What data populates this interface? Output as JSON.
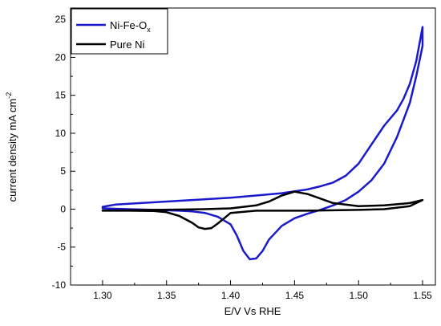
{
  "chart_data": {
    "type": "line",
    "xlabel": "E/V Vs RHE",
    "ylabel_main": "current density mA cm",
    "ylabel_sup": "-2",
    "xlim": [
      1.275,
      1.56
    ],
    "ylim": [
      -10,
      26.5
    ],
    "x_ticks": [
      1.3,
      1.35,
      1.4,
      1.45,
      1.5,
      1.55
    ],
    "x_tick_labels": [
      "1.30",
      "1.35",
      "1.40",
      "1.45",
      "1.50",
      "1.55"
    ],
    "y_ticks": [
      -10,
      -5,
      0,
      5,
      10,
      15,
      20,
      25
    ],
    "y_tick_labels": [
      "-10",
      "-5",
      "0",
      "5",
      "10",
      "15",
      "20",
      "25"
    ],
    "legend_position": "top-left",
    "series": [
      {
        "name": "Ni-Fe-O",
        "name_sub": "x",
        "color": "#1a1acc",
        "x": [
          1.3,
          1.31,
          1.33,
          1.35,
          1.37,
          1.4,
          1.42,
          1.44,
          1.46,
          1.47,
          1.48,
          1.49,
          1.5,
          1.51,
          1.52,
          1.53,
          1.535,
          1.54,
          1.545,
          1.55,
          1.55,
          1.545,
          1.54,
          1.53,
          1.52,
          1.51,
          1.5,
          1.49,
          1.48,
          1.47,
          1.46,
          1.45,
          1.44,
          1.43,
          1.425,
          1.42,
          1.415,
          1.41,
          1.405,
          1.4,
          1.39,
          1.38,
          1.37,
          1.36,
          1.34,
          1.32,
          1.3
        ],
        "y": [
          0.3,
          0.6,
          0.8,
          1.0,
          1.2,
          1.5,
          1.8,
          2.1,
          2.6,
          3.0,
          3.5,
          4.4,
          6.0,
          8.5,
          11.0,
          13.0,
          14.5,
          16.5,
          19.5,
          24.0,
          21.5,
          17.5,
          14.0,
          9.5,
          6.0,
          3.8,
          2.3,
          1.2,
          0.5,
          -0.1,
          -0.6,
          -1.2,
          -2.2,
          -4.0,
          -5.5,
          -6.5,
          -6.6,
          -5.5,
          -3.5,
          -2.0,
          -1.0,
          -0.5,
          -0.3,
          -0.2,
          -0.1,
          0.0,
          0.1
        ]
      },
      {
        "name": "Pure Ni",
        "color": "#000000",
        "x": [
          1.3,
          1.32,
          1.34,
          1.36,
          1.38,
          1.4,
          1.42,
          1.43,
          1.44,
          1.45,
          1.46,
          1.47,
          1.48,
          1.5,
          1.52,
          1.54,
          1.55,
          1.54,
          1.52,
          1.5,
          1.48,
          1.46,
          1.44,
          1.42,
          1.4,
          1.395,
          1.39,
          1.385,
          1.38,
          1.375,
          1.37,
          1.36,
          1.35,
          1.34,
          1.32,
          1.3
        ],
        "y": [
          -0.2,
          -0.15,
          -0.1,
          -0.05,
          0.0,
          0.1,
          0.5,
          1.0,
          1.8,
          2.3,
          2.0,
          1.4,
          0.8,
          0.4,
          0.5,
          0.8,
          1.2,
          0.4,
          0.0,
          -0.1,
          -0.15,
          -0.2,
          -0.2,
          -0.2,
          -0.5,
          -1.2,
          -1.9,
          -2.5,
          -2.6,
          -2.4,
          -1.8,
          -0.9,
          -0.4,
          -0.25,
          -0.2,
          -0.2
        ]
      }
    ]
  }
}
